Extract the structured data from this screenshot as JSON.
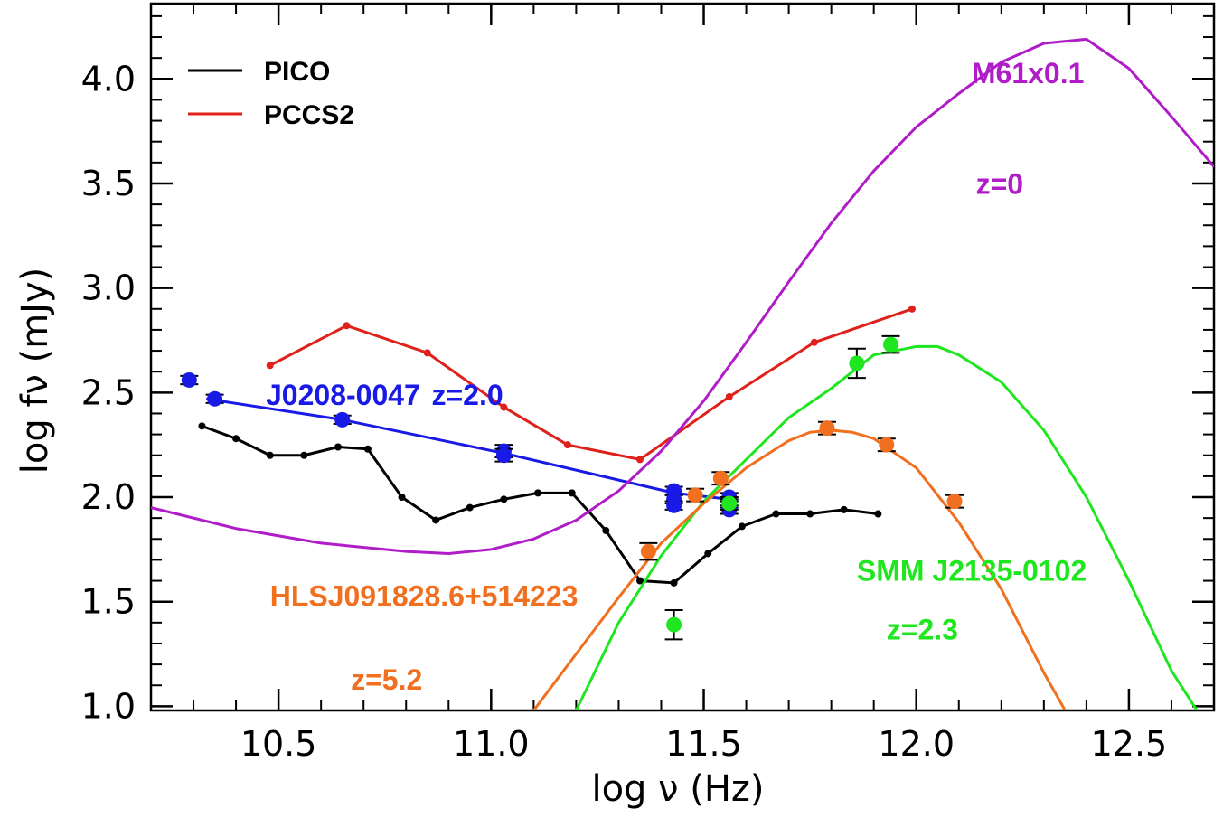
{
  "chart_data": {
    "type": "line",
    "xlabel": "log ν (Hz)",
    "ylabel": "log fν (mJy)",
    "xlim": [
      10.2,
      12.7
    ],
    "ylim": [
      0.98,
      4.36
    ],
    "x_ticks": [
      10.5,
      11.0,
      11.5,
      12.0,
      12.5
    ],
    "x_tick_labels": [
      "10.5",
      "11.0",
      "11.5",
      "12.0",
      "12.5"
    ],
    "y_ticks": [
      1.0,
      1.5,
      2.0,
      2.5,
      3.0,
      3.5,
      4.0
    ],
    "y_tick_labels": [
      "1.0",
      "1.5",
      "2.0",
      "2.5",
      "3.0",
      "3.5",
      "4.0"
    ],
    "grid": false,
    "legend_position": "top-left",
    "legend": [
      {
        "label": "PICO",
        "color": "#000000"
      },
      {
        "label": "PCCS2",
        "color": "#e0201b"
      }
    ],
    "annotations": [
      {
        "text": "J0208-0047",
        "color": "#1a1ae6",
        "x": 10.47,
        "y": 2.44
      },
      {
        "text": "z=2.0",
        "color": "#1a1ae6",
        "x": 10.86,
        "y": 2.44
      },
      {
        "text": "M61x0.1",
        "color": "#b01cc8",
        "x": 12.13,
        "y": 3.98
      },
      {
        "text": "z=0",
        "color": "#b01cc8",
        "x": 12.14,
        "y": 3.45
      },
      {
        "text": "SMM J2135-0102",
        "color": "#1fe61f",
        "x": 11.86,
        "y": 1.6
      },
      {
        "text": "z=2.3",
        "color": "#1fe61f",
        "x": 11.93,
        "y": 1.32
      },
      {
        "text": "HLSJ091828.6+514223",
        "color": "#f07020",
        "x": 10.48,
        "y": 1.48
      },
      {
        "text": "z=5.2",
        "color": "#f07020",
        "x": 10.67,
        "y": 1.08
      }
    ],
    "series": [
      {
        "name": "PICO",
        "color": "#000000",
        "marker": "dot",
        "x": [
          10.32,
          10.4,
          10.48,
          10.56,
          10.64,
          10.71,
          10.79,
          10.87,
          10.95,
          11.03,
          11.11,
          11.19,
          11.27,
          11.35,
          11.43,
          11.51,
          11.59,
          11.67,
          11.75,
          11.83,
          11.91
        ],
        "y": [
          2.34,
          2.28,
          2.2,
          2.2,
          2.24,
          2.23,
          2.0,
          1.89,
          1.95,
          1.99,
          2.02,
          2.02,
          1.84,
          1.6,
          1.59,
          1.73,
          1.86,
          1.92,
          1.92,
          1.94,
          1.92
        ]
      },
      {
        "name": "PCCS2",
        "color": "#e0201b",
        "marker": "dot",
        "x": [
          10.48,
          10.66,
          10.85,
          11.03,
          11.18,
          11.35,
          11.56,
          11.76,
          11.99
        ],
        "y": [
          2.63,
          2.82,
          2.69,
          2.43,
          2.25,
          2.18,
          2.48,
          2.74,
          2.9
        ]
      },
      {
        "color": "#1a1ae6",
        "x": [
          10.33,
          10.65,
          11.03,
          11.43,
          11.56
        ],
        "y": [
          2.47,
          2.37,
          2.21,
          2.02,
          1.99
        ]
      },
      {
        "color": "#1a1ae6",
        "marker": "filled-circle",
        "style": "points",
        "x": [
          10.29,
          10.35,
          10.65,
          11.03,
          11.03,
          11.43,
          11.43,
          11.43,
          11.56,
          11.56,
          11.56
        ],
        "y": [
          2.56,
          2.47,
          2.37,
          2.22,
          2.2,
          2.03,
          1.99,
          1.96,
          2.0,
          1.97,
          1.94
        ],
        "y_err": [
          0.02,
          0.02,
          0.02,
          0.03,
          0.03,
          0.02,
          0.02,
          0.02,
          0.02,
          0.02,
          0.02
        ]
      },
      {
        "color": "#b01cc8",
        "x": [
          10.2,
          10.4,
          10.6,
          10.8,
          10.9,
          11.0,
          11.1,
          11.2,
          11.3,
          11.4,
          11.5,
          11.6,
          11.7,
          11.8,
          11.9,
          12.0,
          12.1,
          12.2,
          12.3,
          12.4,
          12.5,
          12.6,
          12.7
        ],
        "y": [
          1.95,
          1.85,
          1.78,
          1.74,
          1.73,
          1.75,
          1.8,
          1.89,
          2.03,
          2.22,
          2.46,
          2.74,
          3.03,
          3.31,
          3.56,
          3.77,
          3.93,
          4.08,
          4.17,
          4.19,
          4.05,
          3.82,
          3.58
        ]
      },
      {
        "color": "#1fe61f",
        "x": [
          11.2,
          11.3,
          11.4,
          11.5,
          11.6,
          11.7,
          11.8,
          11.9,
          12.0,
          12.05,
          12.1,
          12.2,
          12.3,
          12.4,
          12.5,
          12.6,
          12.66
        ],
        "y": [
          0.98,
          1.4,
          1.72,
          1.98,
          2.18,
          2.38,
          2.52,
          2.68,
          2.72,
          2.72,
          2.68,
          2.55,
          2.32,
          2.0,
          1.6,
          1.17,
          0.98
        ]
      },
      {
        "color": "#1fe61f",
        "marker": "filled-circle",
        "style": "points",
        "x": [
          11.43,
          11.56,
          11.86,
          11.94
        ],
        "y": [
          1.39,
          1.97,
          2.64,
          2.73
        ],
        "y_err": [
          0.07,
          0.03,
          0.07,
          0.04
        ]
      },
      {
        "color": "#f07020",
        "x": [
          11.1,
          11.2,
          11.3,
          11.4,
          11.5,
          11.6,
          11.7,
          11.75,
          11.8,
          11.85,
          11.9,
          12.0,
          12.1,
          12.2,
          12.3,
          12.35
        ],
        "y": [
          0.98,
          1.25,
          1.52,
          1.78,
          1.97,
          2.14,
          2.27,
          2.31,
          2.32,
          2.31,
          2.28,
          2.14,
          1.88,
          1.56,
          1.16,
          0.98
        ]
      },
      {
        "color": "#f07020",
        "marker": "filled-circle",
        "style": "points",
        "x": [
          11.37,
          11.48,
          11.54,
          11.79,
          11.93,
          12.09
        ],
        "y": [
          1.74,
          2.01,
          2.09,
          2.33,
          2.25,
          1.98
        ],
        "y_err": [
          0.04,
          0.03,
          0.03,
          0.03,
          0.03,
          0.03
        ]
      }
    ]
  }
}
